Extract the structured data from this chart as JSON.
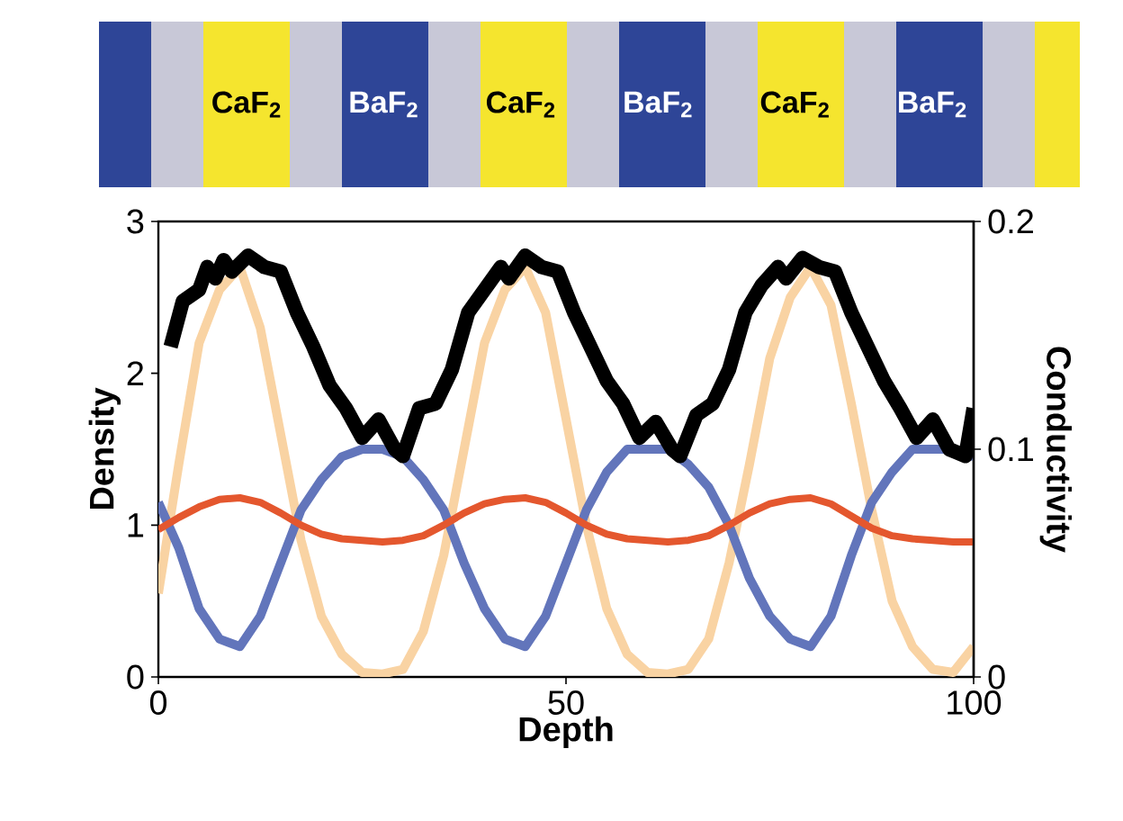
{
  "chart_data": {
    "type": "line",
    "xlabel": "Depth",
    "ylabel": "Density",
    "y2label": "Conductivity",
    "annotations": [
      "CaF$_{2}$",
      "BaF$_{2}$",
      "CaF$_{2}$",
      "BaF$_{2}$",
      "CaF$_{2}$",
      "BaF$_{2}$"
    ],
    "x": [
      0,
      2.5,
      5,
      7.5,
      10,
      12.5,
      15,
      17.5,
      20,
      22.5,
      25,
      27.5,
      30,
      32.5,
      35,
      37.5,
      40,
      42.5,
      45,
      47.5,
      50,
      52.5,
      55,
      57.5,
      60,
      62.5,
      65,
      67.5,
      70,
      72.5,
      75,
      77.5,
      80,
      82.5,
      85,
      87.5,
      90,
      92.5,
      95,
      97.5,
      100
    ],
    "series": [
      {
        "color": "#f9d3a3",
        "values": [
          0.55,
          1.4,
          2.2,
          2.55,
          2.7,
          2.3,
          1.6,
          0.9,
          0.4,
          0.15,
          0.03,
          0.02,
          0.05,
          0.3,
          0.8,
          1.5,
          2.2,
          2.55,
          2.7,
          2.4,
          1.7,
          1.0,
          0.45,
          0.15,
          0.03,
          0.02,
          0.05,
          0.25,
          0.75,
          1.4,
          2.1,
          2.5,
          2.7,
          2.45,
          1.8,
          1.1,
          0.5,
          0.2,
          0.05,
          0.03,
          0.2
        ]
      },
      {
        "color": "#6275bb",
        "values": [
          1.15,
          0.85,
          0.45,
          0.25,
          0.2,
          0.4,
          0.75,
          1.1,
          1.3,
          1.45,
          1.5,
          1.5,
          1.45,
          1.3,
          1.1,
          0.75,
          0.45,
          0.25,
          0.2,
          0.4,
          0.75,
          1.1,
          1.35,
          1.5,
          1.5,
          1.5,
          1.4,
          1.25,
          1.0,
          0.65,
          0.4,
          0.25,
          0.2,
          0.4,
          0.8,
          1.15,
          1.35,
          1.5,
          1.5,
          1.5,
          1.45
        ]
      },
      {
        "color": "#e4572e",
        "values": [
          0.97,
          1.05,
          1.12,
          1.17,
          1.18,
          1.15,
          1.08,
          1.0,
          0.94,
          0.91,
          0.9,
          0.89,
          0.9,
          0.93,
          1.0,
          1.08,
          1.14,
          1.17,
          1.18,
          1.15,
          1.08,
          1.0,
          0.94,
          0.91,
          0.9,
          0.89,
          0.9,
          0.93,
          1.0,
          1.08,
          1.14,
          1.17,
          1.18,
          1.14,
          1.06,
          0.98,
          0.93,
          0.91,
          0.9,
          0.89,
          0.89
        ]
      },
      {
        "color": "#000000",
        "axis": "y2",
        "x": [
          1.5,
          3,
          5,
          6,
          7,
          8,
          9,
          11,
          13,
          15,
          17,
          19,
          21,
          23,
          25,
          27,
          29,
          30,
          32,
          34,
          36,
          38,
          40,
          42,
          43,
          45,
          47,
          49,
          51,
          53,
          55,
          57,
          59,
          61,
          63,
          64,
          66,
          68,
          70,
          72,
          74,
          76,
          77,
          79,
          81,
          83,
          85,
          87,
          89,
          91,
          93,
          95,
          97,
          99,
          100
        ],
        "values": [
          0.145,
          0.165,
          0.17,
          0.18,
          0.175,
          0.183,
          0.178,
          0.185,
          0.18,
          0.178,
          0.16,
          0.145,
          0.128,
          0.118,
          0.105,
          0.113,
          0.1,
          0.097,
          0.118,
          0.12,
          0.135,
          0.16,
          0.17,
          0.18,
          0.175,
          0.185,
          0.18,
          0.178,
          0.16,
          0.145,
          0.13,
          0.12,
          0.105,
          0.112,
          0.1,
          0.097,
          0.115,
          0.12,
          0.135,
          0.16,
          0.172,
          0.18,
          0.175,
          0.184,
          0.18,
          0.178,
          0.16,
          0.145,
          0.13,
          0.118,
          0.105,
          0.113,
          0.1,
          0.097,
          0.118
        ]
      }
    ],
    "xlim": [
      0,
      100
    ],
    "ylim": [
      0,
      3
    ],
    "y2lim": [
      0,
      0.2
    ],
    "xticks": [
      0,
      50,
      100
    ],
    "yticks": [
      0,
      1,
      2,
      3
    ],
    "y2ticks": [
      0,
      0.1,
      0.2
    ]
  }
}
